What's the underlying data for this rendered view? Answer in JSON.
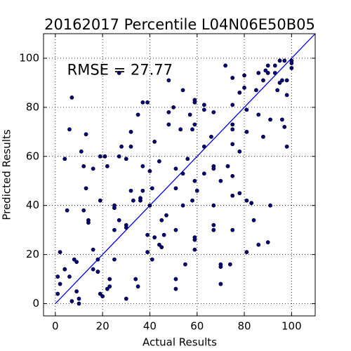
{
  "chart_data": {
    "type": "scatter",
    "title": "20162017 Percentile L04N06E50B05",
    "xlabel": "Actual Results",
    "ylabel": "Predicted Results",
    "annotation": {
      "text": "RMSE = 27.77",
      "x": 5,
      "y": 95
    },
    "color": "#00007f",
    "x": [
      1,
      1,
      2,
      2,
      4,
      4,
      4,
      5,
      6,
      6,
      7,
      7,
      8,
      9,
      9,
      10,
      10,
      11,
      12,
      12,
      13,
      13,
      14,
      14,
      16,
      16,
      16,
      18,
      18,
      18,
      19,
      19,
      19,
      20,
      21,
      22,
      22,
      23,
      23,
      25,
      25,
      25,
      25,
      27,
      27,
      27,
      28,
      30,
      30,
      30,
      30,
      32,
      32,
      32,
      33,
      34,
      35,
      35,
      36,
      36,
      37,
      37,
      37,
      39,
      39,
      39,
      40,
      40,
      41,
      41,
      42,
      42,
      44,
      44,
      45,
      45,
      46,
      47,
      48,
      48,
      48,
      50,
      51,
      51,
      51,
      51,
      51,
      53,
      54,
      54,
      54,
      55,
      56,
      57,
      58,
      58,
      59,
      59,
      59,
      59,
      59,
      59,
      59,
      60,
      63,
      63,
      63,
      63,
      66,
      67,
      67,
      67,
      67,
      67,
      67,
      70,
      70,
      70,
      70,
      72,
      73,
      74,
      75,
      75,
      75,
      75,
      75,
      75,
      75,
      75,
      78,
      78,
      78,
      80,
      80,
      81,
      81,
      81,
      81,
      83,
      84,
      85,
      86,
      86,
      86,
      88,
      88,
      89,
      90,
      90,
      90,
      91,
      91,
      93,
      93,
      94,
      95,
      95,
      96,
      96,
      97,
      97,
      98,
      98,
      98,
      100,
      100,
      100
    ],
    "values": [
      4,
      11,
      21,
      8,
      14,
      14,
      59,
      38,
      11,
      71,
      1,
      84,
      18,
      17,
      5,
      2,
      0,
      62,
      38,
      56,
      69,
      47,
      34,
      33,
      55,
      22,
      14,
      13,
      18,
      13,
      60,
      42,
      4,
      3,
      60,
      56,
      6,
      10,
      7,
      40,
      30,
      39,
      18,
      34,
      60,
      94,
      64,
      2,
      32,
      31,
      59,
      64,
      46,
      70,
      42,
      10,
      77,
      7,
      42,
      43,
      56,
      46,
      82,
      82,
      21,
      28,
      40,
      54,
      47,
      18,
      27,
      66,
      58,
      24,
      23,
      34,
      28,
      36,
      91,
      78,
      73,
      80,
      10,
      6,
      55,
      47,
      30,
      71,
      87,
      53,
      40,
      16,
      59,
      77,
      71,
      42,
      26,
      27,
      22,
      83,
      82,
      73,
      50,
      46,
      81,
      79,
      64,
      53,
      68,
      56,
      55,
      40,
      32,
      30,
      78,
      50,
      16,
      15,
      8,
      97,
      56,
      16,
      71,
      92,
      81,
      73,
      65,
      52,
      44,
      30,
      45,
      62,
      86,
      93,
      88,
      79,
      70,
      42,
      21,
      41,
      34,
      87,
      24,
      94,
      77,
      91,
      68,
      95,
      94,
      97,
      25,
      75,
      40,
      97,
      94,
      87,
      90,
      99,
      91,
      75,
      72,
      99,
      64,
      85,
      91,
      98,
      99,
      96
    ],
    "diagonal": {
      "x": [
        0,
        110
      ],
      "y": [
        0,
        110
      ],
      "color": "#0000ff"
    },
    "xlim": [
      -5,
      110
    ],
    "ylim": [
      -5,
      110
    ],
    "xticks": [
      0,
      20,
      40,
      60,
      80,
      100
    ],
    "yticks": [
      0,
      20,
      40,
      60,
      80,
      100
    ],
    "grid": true
  }
}
